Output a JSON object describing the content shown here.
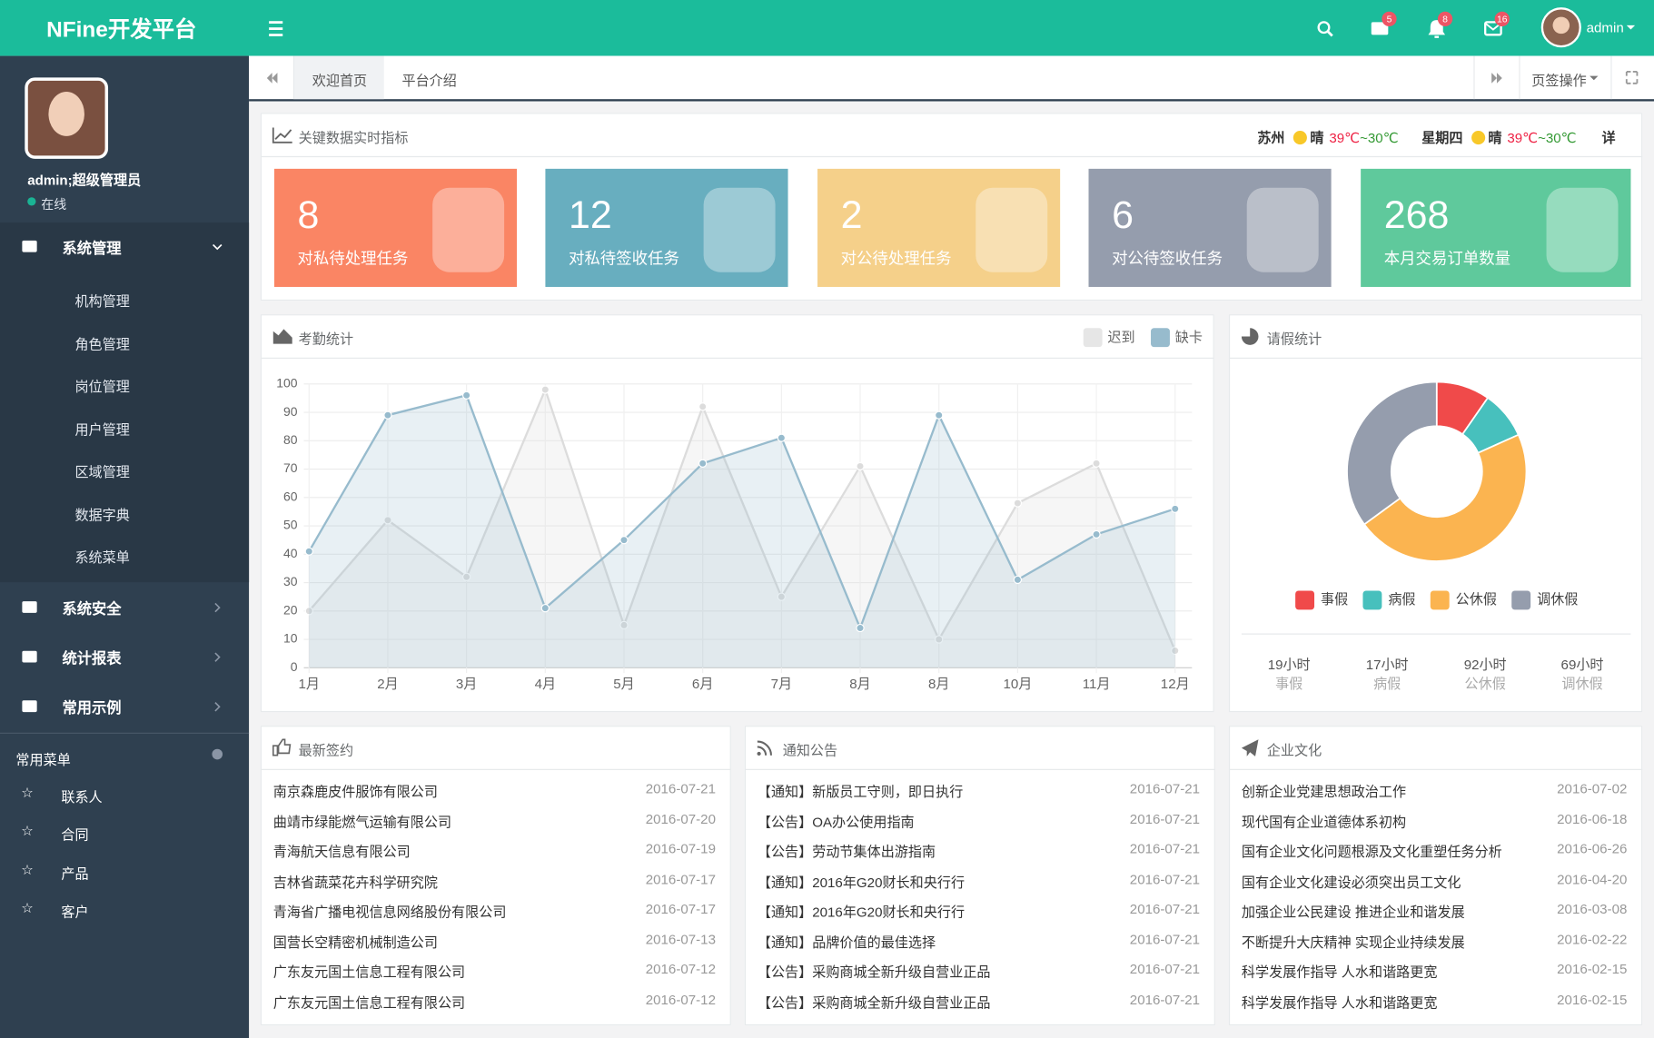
{
  "header": {
    "logo": "NFine开发平台",
    "badges": [
      5,
      8,
      16
    ],
    "user": "admin"
  },
  "sidebar": {
    "user": "admin;超级管理员",
    "status": "在线",
    "menus": [
      {
        "label": "系统管理",
        "children": [
          "机构管理",
          "角色管理",
          "岗位管理",
          "用户管理",
          "区域管理",
          "数据字典",
          "系统菜单"
        ]
      },
      {
        "label": "系统安全"
      },
      {
        "label": "统计报表"
      },
      {
        "label": "常用示例"
      }
    ],
    "favorites_title": "常用菜单",
    "favorites": [
      "联系人",
      "合同",
      "产品",
      "客户"
    ]
  },
  "tabs": {
    "items": [
      "欢迎首页",
      "平台介绍"
    ],
    "actions": "页签操作"
  },
  "kpi_panel": {
    "title": "关键数据实时指标",
    "weather": {
      "city": "苏州",
      "condition": "晴",
      "high": "39℃",
      "sep": "~",
      "low": "30℃",
      "weekday": "星期四",
      "condition2": "晴",
      "high2": "39℃",
      "sep2": "~",
      "low2": "30℃",
      "more": "详"
    },
    "cards": [
      {
        "value": 8,
        "label": "对私待处理任务",
        "color": "#fa8564"
      },
      {
        "value": 12,
        "label": "对私待签收任务",
        "color": "#68aebf"
      },
      {
        "value": 2,
        "label": "对公待处理任务",
        "color": "#f5d08a"
      },
      {
        "value": 6,
        "label": "对公待签收任务",
        "color": "#959dad"
      },
      {
        "value": 268,
        "label": "本月交易订单数量",
        "color": "#5fc99c"
      }
    ]
  },
  "chart_data": [
    {
      "type": "line",
      "title": "考勤统计",
      "categories": [
        "1月",
        "2月",
        "3月",
        "4月",
        "5月",
        "6月",
        "7月",
        "8月",
        "8月",
        "10月",
        "11月",
        "12月"
      ],
      "series": [
        {
          "name": "迟到",
          "color": "#dcdcdc",
          "values": [
            20,
            52,
            32,
            98,
            15,
            92,
            25,
            71,
            10,
            58,
            72,
            6
          ]
        },
        {
          "name": "缺卡",
          "color": "#97bbcd",
          "values": [
            41,
            89,
            96,
            21,
            45,
            72,
            81,
            14,
            89,
            31,
            47,
            56
          ]
        }
      ],
      "ylim": [
        0,
        100
      ],
      "yticks": [
        0,
        10,
        20,
        30,
        40,
        50,
        60,
        70,
        80,
        90,
        100
      ],
      "grid": true,
      "legend": "top-right"
    },
    {
      "type": "pie",
      "title": "请假统计",
      "categories": [
        "事假",
        "病假",
        "公休假",
        "调休假"
      ],
      "values": [
        19,
        17,
        92,
        69
      ],
      "value_labels": [
        "19小时",
        "17小时",
        "92小时",
        "69小时"
      ],
      "colors": [
        "#f04a4a",
        "#47c0bd",
        "#fbb450",
        "#959dad"
      ],
      "legend": "bottom"
    }
  ],
  "lists": [
    {
      "title": "最新签约",
      "rows": [
        {
          "name": "南京森鹿皮件服饰有限公司",
          "date": "2016-07-21"
        },
        {
          "name": "曲靖市绿能燃气运输有限公司",
          "date": "2016-07-20"
        },
        {
          "name": "青海航天信息有限公司",
          "date": "2016-07-19"
        },
        {
          "name": "吉林省蔬菜花卉科学研究院",
          "date": "2016-07-17"
        },
        {
          "name": "青海省广播电视信息网络股份有限公司",
          "date": "2016-07-17"
        },
        {
          "name": "国营长空精密机械制造公司",
          "date": "2016-07-13"
        },
        {
          "name": "广东友元国土信息工程有限公司",
          "date": "2016-07-12"
        },
        {
          "name": "广东友元国土信息工程有限公司",
          "date": "2016-07-12"
        }
      ]
    },
    {
      "title": "通知公告",
      "rows": [
        {
          "name": "【通知】新版员工守则，即日执行",
          "date": "2016-07-21"
        },
        {
          "name": "【公告】OA办公使用指南",
          "date": "2016-07-21"
        },
        {
          "name": "【公告】劳动节集体出游指南",
          "date": "2016-07-21"
        },
        {
          "name": "【通知】2016年G20财长和央行行",
          "date": "2016-07-21"
        },
        {
          "name": "【通知】2016年G20财长和央行行",
          "date": "2016-07-21"
        },
        {
          "name": "【通知】品牌价值的最佳选择",
          "date": "2016-07-21"
        },
        {
          "name": "【公告】采购商城全新升级自营业正品",
          "date": "2016-07-21"
        },
        {
          "name": "【公告】采购商城全新升级自营业正品",
          "date": "2016-07-21"
        }
      ]
    },
    {
      "title": "企业文化",
      "rows": [
        {
          "name": "创新企业党建思想政治工作",
          "date": "2016-07-02"
        },
        {
          "name": "现代国有企业道德体系初构",
          "date": "2016-06-18"
        },
        {
          "name": "国有企业文化问题根源及文化重塑任务分析",
          "date": "2016-06-26"
        },
        {
          "name": "国有企业文化建设必须突出员工文化",
          "date": "2016-04-20"
        },
        {
          "name": "加强企业公民建设 推进企业和谐发展",
          "date": "2016-03-08"
        },
        {
          "name": "不断提升大庆精神 实现企业持续发展",
          "date": "2016-02-22"
        },
        {
          "name": "科学发展作指导 人水和谐路更宽",
          "date": "2016-02-15"
        },
        {
          "name": "科学发展作指导 人水和谐路更宽",
          "date": "2016-02-15"
        }
      ]
    }
  ]
}
